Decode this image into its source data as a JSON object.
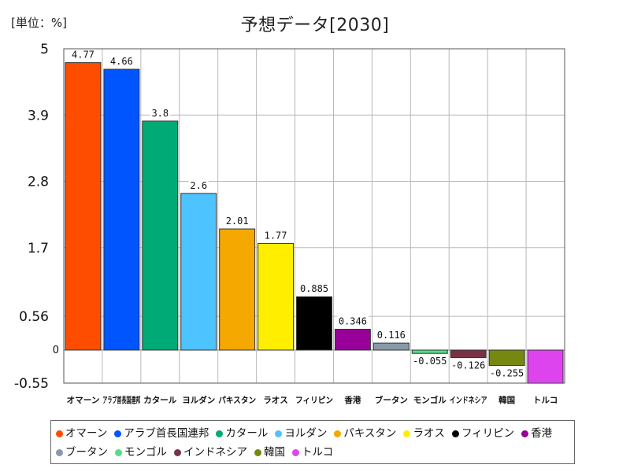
{
  "unit_label": "[単位：%]",
  "chart_data": {
    "type": "bar",
    "title": "予想データ[2030]",
    "xlabel": "",
    "ylabel": "",
    "ylim": [
      -0.55,
      5
    ],
    "y_ticks": [
      {
        "value": 5,
        "label": "5"
      },
      {
        "value": 3.9,
        "label": "3.9"
      },
      {
        "value": 2.8,
        "label": "2.8"
      },
      {
        "value": 1.7,
        "label": "1.7"
      },
      {
        "value": 0.56,
        "label": "0.56"
      },
      {
        "value": 0,
        "label": "0"
      },
      {
        "value": -0.55,
        "label": "-0.55"
      }
    ],
    "categories": [
      "オマーン",
      "アラブ首長国連邦",
      "カタール",
      "ヨルダン",
      "パキスタン",
      "ラオス",
      "フィリピン",
      "香港",
      "ブータン",
      "モンゴル",
      "インドネシア",
      "韓国",
      "トルコ"
    ],
    "values": [
      4.77,
      4.66,
      3.8,
      2.6,
      2.01,
      1.77,
      0.885,
      0.346,
      0.116,
      -0.055,
      -0.126,
      -0.255,
      -0.55
    ],
    "value_labels": [
      "4.77",
      "4.66",
      "3.8",
      "2.6",
      "2.01",
      "1.77",
      "0.885",
      "0.346",
      "0.116",
      "-0.055",
      "-0.126",
      "-0.255",
      ""
    ],
    "colors": [
      "#ff4d00",
      "#0055ff",
      "#00aa77",
      "#4dc3ff",
      "#f5a800",
      "#ffee00",
      "#000000",
      "#990099",
      "#8899aa",
      "#55dd88",
      "#773344",
      "#778811",
      "#dd44ee"
    ],
    "grid": true,
    "legend_position": "bottom"
  }
}
